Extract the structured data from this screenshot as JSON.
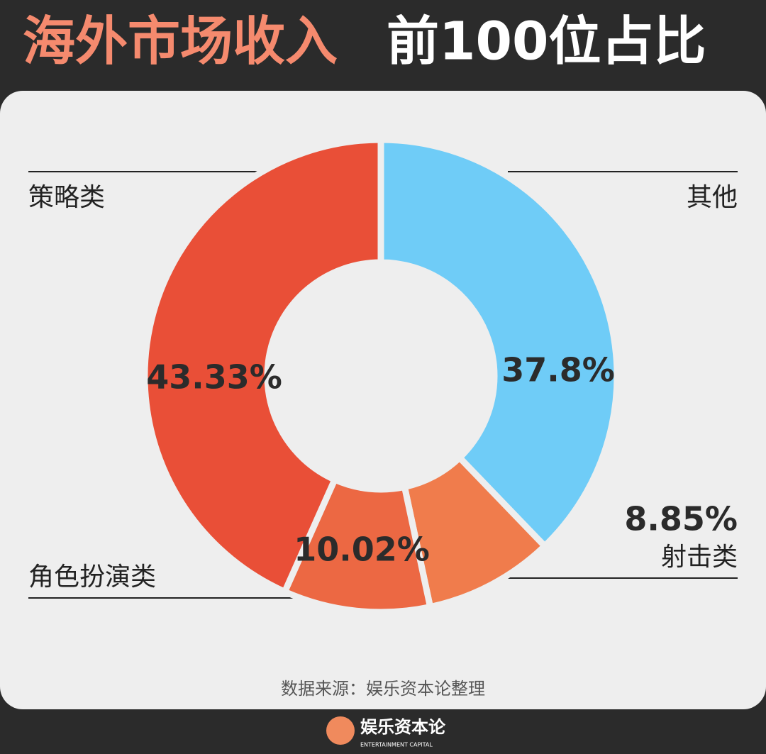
{
  "chart_data": {
    "type": "donut",
    "title": "海外市场收入",
    "subtitle": "前100位占比",
    "categories": [
      "其他",
      "射击类",
      "角色扮演类",
      "策略类"
    ],
    "values": [
      37.8,
      8.85,
      10.02,
      43.33
    ],
    "value_labels": [
      "37.8%",
      "8.85%",
      "10.02%",
      "43.33%"
    ],
    "colors": [
      "#6fccf7",
      "#f07c4c",
      "#ec6843",
      "#e94f37"
    ],
    "source": "数据来源：娱乐资本论整理"
  },
  "footer": {
    "brand": "娱乐资本论",
    "brand_en": "ENTERTAINMENT CAPITAL"
  }
}
